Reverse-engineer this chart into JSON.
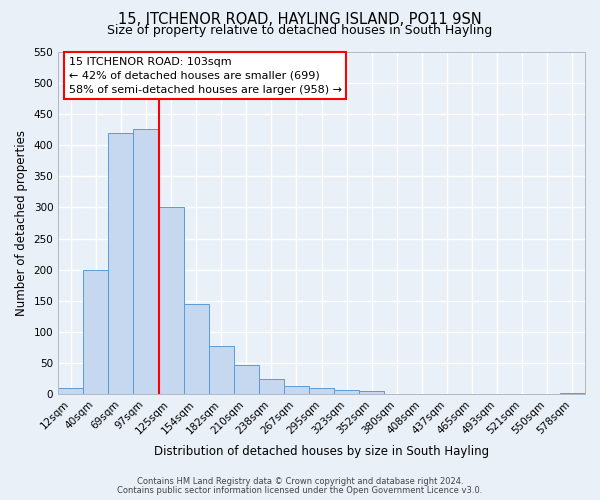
{
  "title": "15, ITCHENOR ROAD, HAYLING ISLAND, PO11 9SN",
  "subtitle": "Size of property relative to detached houses in South Hayling",
  "xlabel": "Distribution of detached houses by size in South Hayling",
  "ylabel": "Number of detached properties",
  "categories": [
    "12sqm",
    "40sqm",
    "69sqm",
    "97sqm",
    "125sqm",
    "154sqm",
    "182sqm",
    "210sqm",
    "238sqm",
    "267sqm",
    "295sqm",
    "323sqm",
    "352sqm",
    "380sqm",
    "408sqm",
    "437sqm",
    "465sqm",
    "493sqm",
    "521sqm",
    "550sqm",
    "578sqm"
  ],
  "values": [
    10,
    200,
    420,
    425,
    300,
    145,
    78,
    48,
    25,
    13,
    10,
    7,
    5,
    0,
    0,
    0,
    0,
    0,
    0,
    0,
    3
  ],
  "bar_color": "#c5d8f0",
  "bar_edge_color": "#5b9bd5",
  "red_line_index": 3,
  "ylim": [
    0,
    550
  ],
  "yticks": [
    0,
    50,
    100,
    150,
    200,
    250,
    300,
    350,
    400,
    450,
    500,
    550
  ],
  "annotation_title": "15 ITCHENOR ROAD: 103sqm",
  "annotation_line1": "← 42% of detached houses are smaller (699)",
  "annotation_line2": "58% of semi-detached houses are larger (958) →",
  "footnote1": "Contains HM Land Registry data © Crown copyright and database right 2024.",
  "footnote2": "Contains public sector information licensed under the Open Government Licence v3.0.",
  "bg_color": "#eaf0f8",
  "grid_color": "#ffffff",
  "title_fontsize": 10.5,
  "subtitle_fontsize": 9,
  "axis_label_fontsize": 8.5,
  "tick_fontsize": 7.5,
  "annot_fontsize": 8,
  "footnote_fontsize": 6
}
